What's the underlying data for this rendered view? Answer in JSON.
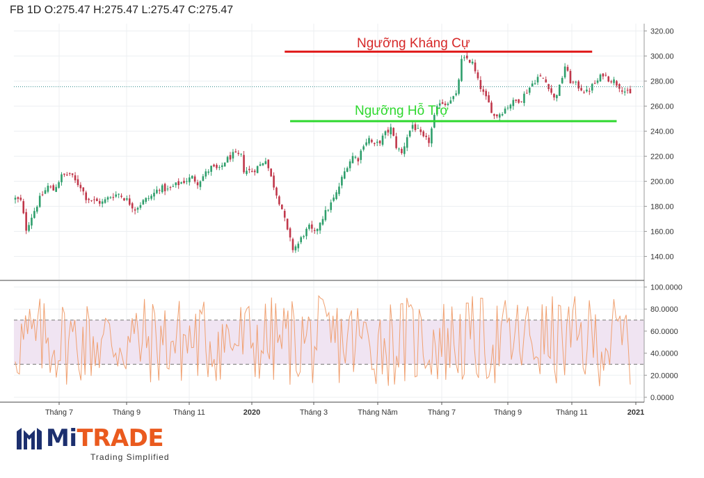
{
  "header": {
    "ohlc": "FB 1D O:275.47 H:275.47 L:275.47 C:275.47"
  },
  "logo": {
    "mi": "Mi",
    "trade": "TRADE",
    "tagline": "Trading Simplified"
  },
  "colors": {
    "up": "#2e9e6b",
    "down": "#c0374a",
    "resistance": "#e01818",
    "support": "#2ed82e",
    "oscillator": "#f0a070",
    "band": "#f0e4f2"
  },
  "chart_data": [
    {
      "type": "candlestick",
      "title": "",
      "y_ticks": [
        "320.00",
        "300.00",
        "280.00",
        "260.00",
        "240.00",
        "220.00",
        "200.00",
        "180.00",
        "160.00",
        "140.00"
      ],
      "ylim": [
        128,
        328
      ],
      "x_ticks": [
        "Tháng 7",
        "Tháng 9",
        "Tháng 11",
        "2020",
        "Tháng 3",
        "Tháng Năm",
        "Tháng 7",
        "Tháng 9",
        "Tháng 11",
        "2021"
      ],
      "x_ticks_bold": [
        false,
        false,
        false,
        true,
        false,
        false,
        false,
        false,
        false,
        true
      ],
      "last_price": 275.47,
      "close_path": [
        {
          "t": 0,
          "v": 186
        },
        {
          "t": 2,
          "v": 184
        },
        {
          "t": 4,
          "v": 162
        },
        {
          "t": 6,
          "v": 172
        },
        {
          "t": 9,
          "v": 186
        },
        {
          "t": 12,
          "v": 196
        },
        {
          "t": 14,
          "v": 193
        },
        {
          "t": 17,
          "v": 204
        },
        {
          "t": 20,
          "v": 206
        },
        {
          "t": 22,
          "v": 200
        },
        {
          "t": 24,
          "v": 196
        },
        {
          "t": 26,
          "v": 187
        },
        {
          "t": 29,
          "v": 184
        },
        {
          "t": 32,
          "v": 183
        },
        {
          "t": 35,
          "v": 188
        },
        {
          "t": 38,
          "v": 190
        },
        {
          "t": 41,
          "v": 185
        },
        {
          "t": 44,
          "v": 178
        },
        {
          "t": 47,
          "v": 184
        },
        {
          "t": 50,
          "v": 188
        },
        {
          "t": 53,
          "v": 195
        },
        {
          "t": 56,
          "v": 193
        },
        {
          "t": 59,
          "v": 197
        },
        {
          "t": 62,
          "v": 200
        },
        {
          "t": 65,
          "v": 203
        },
        {
          "t": 67,
          "v": 199
        },
        {
          "t": 69,
          "v": 204
        },
        {
          "t": 72,
          "v": 211
        },
        {
          "t": 75,
          "v": 209
        },
        {
          "t": 77,
          "v": 216
        },
        {
          "t": 80,
          "v": 221
        },
        {
          "t": 83,
          "v": 220
        },
        {
          "t": 84,
          "v": 209
        },
        {
          "t": 87,
          "v": 208
        },
        {
          "t": 90,
          "v": 213
        },
        {
          "t": 92,
          "v": 218
        },
        {
          "t": 94,
          "v": 203
        },
        {
          "t": 96,
          "v": 190
        },
        {
          "t": 98,
          "v": 178
        },
        {
          "t": 100,
          "v": 160
        },
        {
          "t": 102,
          "v": 146
        },
        {
          "t": 104,
          "v": 150
        },
        {
          "t": 106,
          "v": 158
        },
        {
          "t": 108,
          "v": 163
        },
        {
          "t": 110,
          "v": 158
        },
        {
          "t": 112,
          "v": 168
        },
        {
          "t": 114,
          "v": 175
        },
        {
          "t": 116,
          "v": 182
        },
        {
          "t": 118,
          "v": 190
        },
        {
          "t": 120,
          "v": 202
        },
        {
          "t": 122,
          "v": 213
        },
        {
          "t": 124,
          "v": 220
        },
        {
          "t": 126,
          "v": 218
        },
        {
          "t": 128,
          "v": 230
        },
        {
          "t": 130,
          "v": 234
        },
        {
          "t": 132,
          "v": 228
        },
        {
          "t": 134,
          "v": 232
        },
        {
          "t": 136,
          "v": 238
        },
        {
          "t": 138,
          "v": 242
        },
        {
          "t": 140,
          "v": 228
        },
        {
          "t": 142,
          "v": 222
        },
        {
          "t": 144,
          "v": 236
        },
        {
          "t": 146,
          "v": 245
        },
        {
          "t": 148,
          "v": 240
        },
        {
          "t": 150,
          "v": 234
        },
        {
          "t": 152,
          "v": 232
        },
        {
          "t": 154,
          "v": 251
        },
        {
          "t": 156,
          "v": 264
        },
        {
          "t": 158,
          "v": 262
        },
        {
          "t": 160,
          "v": 266
        },
        {
          "t": 162,
          "v": 268
        },
        {
          "t": 164,
          "v": 296
        },
        {
          "t": 166,
          "v": 298
        },
        {
          "t": 168,
          "v": 294
        },
        {
          "t": 170,
          "v": 280
        },
        {
          "t": 172,
          "v": 270
        },
        {
          "t": 174,
          "v": 262
        },
        {
          "t": 176,
          "v": 252
        },
        {
          "t": 178,
          "v": 254
        },
        {
          "t": 180,
          "v": 258
        },
        {
          "t": 182,
          "v": 262
        },
        {
          "t": 184,
          "v": 264
        },
        {
          "t": 186,
          "v": 266
        },
        {
          "t": 188,
          "v": 272
        },
        {
          "t": 190,
          "v": 278
        },
        {
          "t": 192,
          "v": 283
        },
        {
          "t": 194,
          "v": 282
        },
        {
          "t": 196,
          "v": 276
        },
        {
          "t": 198,
          "v": 266
        },
        {
          "t": 200,
          "v": 275
        },
        {
          "t": 202,
          "v": 292
        },
        {
          "t": 204,
          "v": 280
        },
        {
          "t": 206,
          "v": 277
        },
        {
          "t": 208,
          "v": 274
        },
        {
          "t": 210,
          "v": 271
        },
        {
          "t": 212,
          "v": 276
        },
        {
          "t": 214,
          "v": 280
        },
        {
          "t": 216,
          "v": 286
        },
        {
          "t": 218,
          "v": 282
        },
        {
          "t": 220,
          "v": 280
        },
        {
          "t": 222,
          "v": 276
        },
        {
          "t": 224,
          "v": 272
        },
        {
          "t": 226,
          "v": 269
        }
      ],
      "annotations": [
        {
          "label": "Ngưỡng Kháng Cự",
          "level": 303.5,
          "t_start": 99,
          "t_end": 212,
          "role": "resistance"
        },
        {
          "label": "Ngưỡng Hỗ Trợ",
          "level": 248,
          "t_start": 101,
          "t_end": 221,
          "role": "support"
        }
      ]
    },
    {
      "type": "line",
      "title": "",
      "y_ticks": [
        "100.0000",
        "80.0000",
        "60.0000",
        "40.0000",
        "20.0000",
        "0.0000"
      ],
      "ylim": [
        0,
        100
      ],
      "levels": [
        70,
        30
      ],
      "x_ticks": [
        "Tháng 7",
        "Tháng 9",
        "Tháng 11",
        "2020",
        "Tháng 3",
        "Tháng Năm",
        "Tháng 7",
        "Tháng 9",
        "Tháng 11",
        "2021"
      ]
    }
  ]
}
